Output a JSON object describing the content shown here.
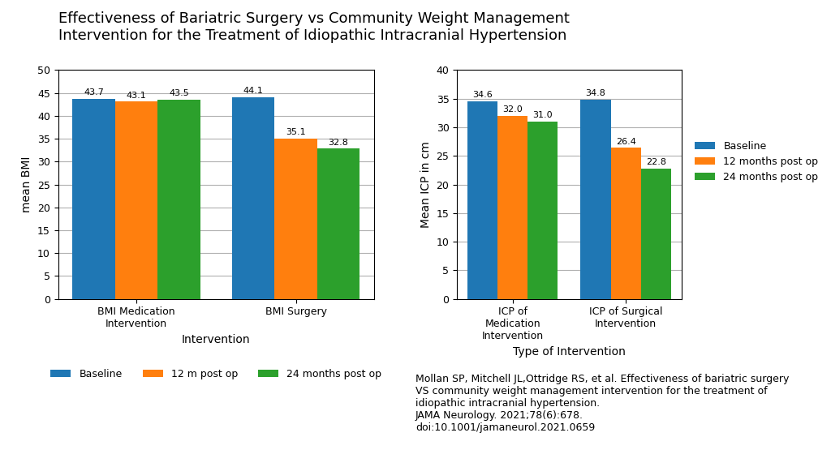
{
  "title": "Effectiveness of Bariatric Surgery vs Community Weight Management\nIntervention for the Treatment of Idiopathic Intracranial Hypertension",
  "annotations": [
    "Mollan SP, Mitchell JL,Ottridge RS, et al. Effectiveness of bariatric surgery\nVS community weight management intervention for the treatment of\nidiopathic intracranial hypertension.\nJAMA Neurology. 2021;78(6):678.\ndoi:10.1001/jamaneurol.2021.0659"
  ],
  "chart_data": [
    {
      "type": "bar",
      "categories": [
        "BMI Medication\nIntervention",
        "BMI Surgery"
      ],
      "xlabel": "Intervention",
      "ylabel": "mean BMI",
      "ylim": [
        0,
        50
      ],
      "yticks": [
        0,
        5,
        10,
        15,
        20,
        25,
        30,
        35,
        40,
        45,
        50
      ],
      "grid": true,
      "data_labels": true,
      "legend": "below",
      "series": [
        {
          "name": "Baseline",
          "values": [
            43.7,
            44.1
          ]
        },
        {
          "name": "12 m post op",
          "values": [
            43.1,
            35.1
          ]
        },
        {
          "name": "24 months post op",
          "values": [
            43.5,
            32.8
          ]
        }
      ]
    },
    {
      "type": "bar",
      "categories": [
        "ICP of\nMedication\nIntervention",
        "ICP of Surgical\nIntervention"
      ],
      "xlabel": "Type of Intervention",
      "ylabel": "Mean ICP in cm",
      "ylim": [
        0,
        40
      ],
      "yticks": [
        0,
        5,
        10,
        15,
        20,
        25,
        30,
        35,
        40
      ],
      "grid": true,
      "data_labels": true,
      "legend": "right",
      "series": [
        {
          "name": "Baseline",
          "values": [
            34.6,
            34.8
          ]
        },
        {
          "name": "12 months post op",
          "values": [
            32.0,
            26.4
          ]
        },
        {
          "name": "24 months post op",
          "values": [
            31.0,
            22.8
          ]
        }
      ]
    }
  ]
}
